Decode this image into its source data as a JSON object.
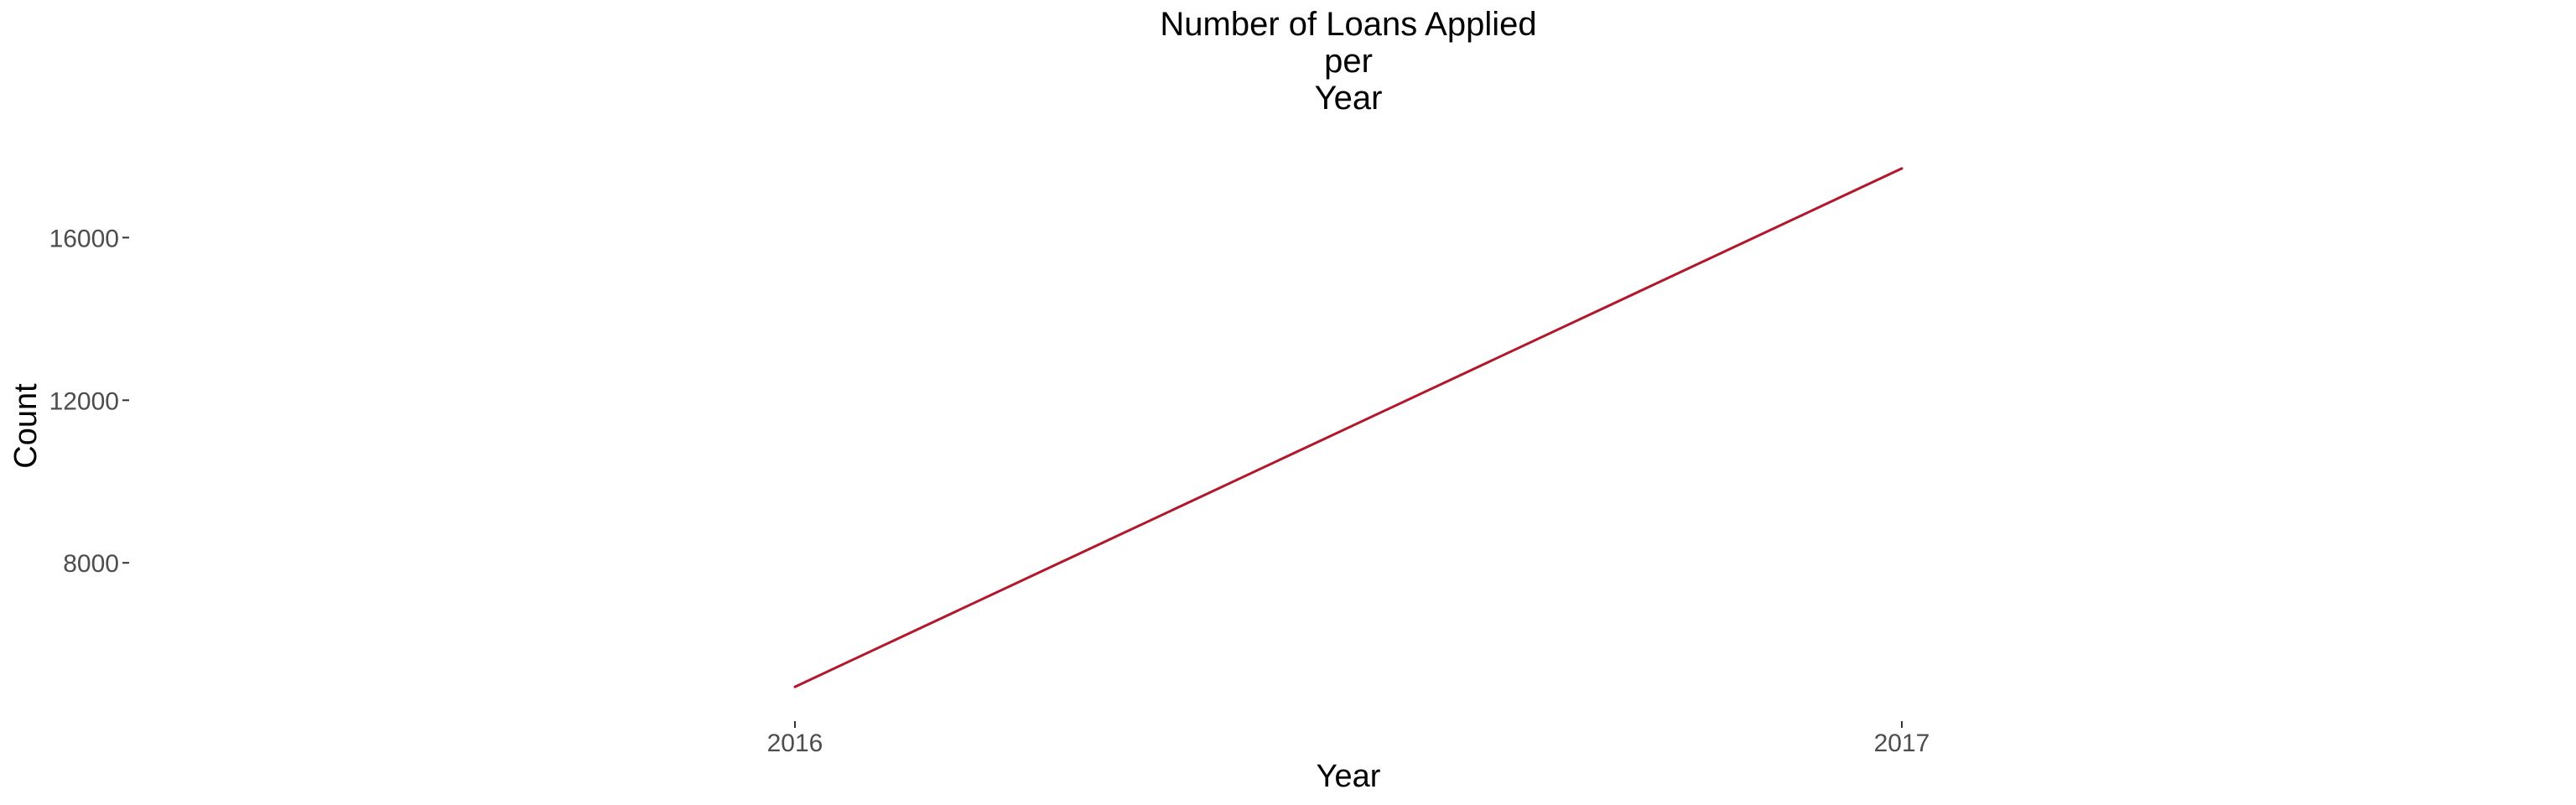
{
  "chart_data": {
    "type": "line",
    "title_lines": [
      "Number of Loans Applied",
      "per",
      "Year"
    ],
    "xlabel": "Year",
    "ylabel": "Count",
    "x": [
      "2016",
      "2017"
    ],
    "series": [
      {
        "name": "Count",
        "values": [
          4950,
          17700
        ],
        "color": "#b2182b"
      }
    ],
    "yticks": [
      8000,
      12000,
      16000
    ],
    "ylim": [
      4312.5,
      18337.5
    ],
    "grid": false,
    "legend": "none"
  }
}
